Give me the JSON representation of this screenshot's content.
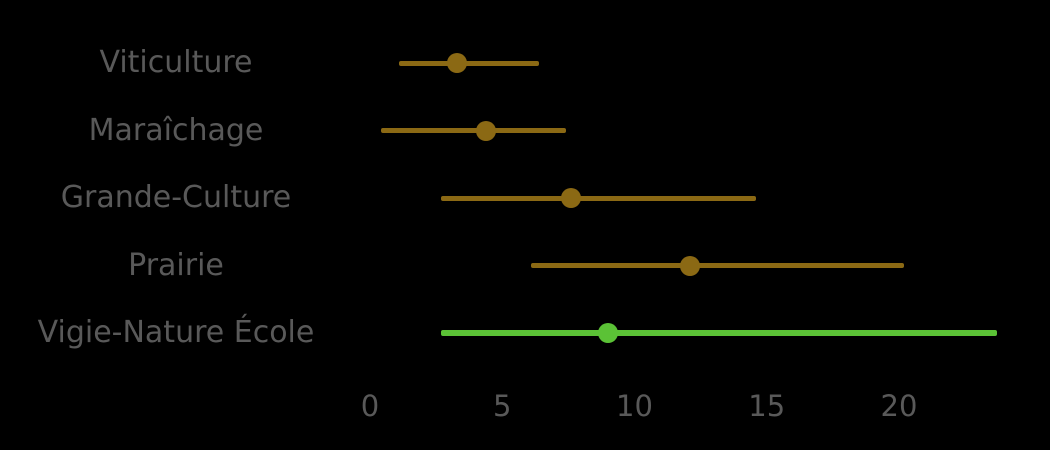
{
  "chart_data": {
    "type": "scatter",
    "variant": "dot-plot-with-error-bars",
    "orientation": "horizontal",
    "title": "",
    "xlabel": "",
    "ylabel": "",
    "background_color": "#000000",
    "text_color": "#595959",
    "grid": false,
    "legend": false,
    "xlim": [
      -1.1,
      24.5
    ],
    "x_tick_values": [
      0,
      5,
      10,
      15,
      20
    ],
    "x_tick_labels": [
      "0",
      "5",
      "10",
      "15",
      "20"
    ],
    "categories": [
      "Viticulture",
      "Maraîchage",
      "Grande-Culture",
      "Prairie",
      "Vigie-Nature École"
    ],
    "series": [
      {
        "name": "Viticulture",
        "value": 3.3,
        "low": 1.1,
        "high": 6.4,
        "color": "#8B6914",
        "highlight": false
      },
      {
        "name": "Maraîchage",
        "value": 4.4,
        "low": 0.4,
        "high": 7.4,
        "color": "#8B6914",
        "highlight": false
      },
      {
        "name": "Grande-Culture",
        "value": 7.6,
        "low": 2.7,
        "high": 14.6,
        "color": "#8B6914",
        "highlight": false
      },
      {
        "name": "Prairie",
        "value": 12.1,
        "low": 6.1,
        "high": 20.2,
        "color": "#8B6914",
        "highlight": false
      },
      {
        "name": "Vigie-Nature École",
        "value": 9.0,
        "low": 2.7,
        "high": 23.7,
        "color": "#5BC236",
        "highlight": true
      }
    ]
  }
}
